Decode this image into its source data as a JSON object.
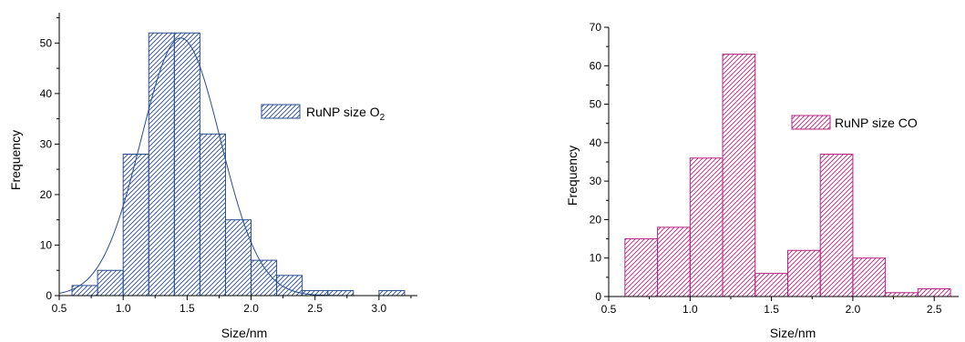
{
  "chart_data": [
    {
      "type": "bar",
      "xlabel": "Size/nm",
      "ylabel": "Frequency",
      "xlim": [
        0.5,
        3.3
      ],
      "ylim": [
        0,
        56
      ],
      "xticks": [
        "0.5",
        "1.0",
        "1.5",
        "2.0",
        "2.5",
        "3.0"
      ],
      "xtick_values": [
        0.5,
        1.0,
        1.5,
        2.0,
        2.5,
        3.0
      ],
      "yticks": [
        "0",
        "10",
        "20",
        "30",
        "40",
        "50"
      ],
      "ytick_values": [
        0,
        10,
        20,
        30,
        40,
        50
      ],
      "bin_width": 0.2,
      "bin_starts": [
        0.6,
        0.8,
        1.0,
        1.2,
        1.4,
        1.6,
        1.8,
        2.0,
        2.2,
        2.4,
        2.6,
        2.8,
        3.0
      ],
      "values": [
        2,
        5,
        28,
        52,
        52,
        32,
        15,
        7,
        4,
        1,
        1,
        0,
        1
      ],
      "legend": {
        "label": "RuNP size O",
        "subscript": "2",
        "placement": "top-right"
      },
      "color": "#2a4d8f",
      "fit_curve": {
        "type": "gaussian",
        "center": 1.45,
        "peak": 51,
        "sigma": 0.31
      },
      "grid": false
    },
    {
      "type": "bar",
      "xlabel": "Size/nm",
      "ylabel": "Frequency",
      "xlim": [
        0.5,
        2.65
      ],
      "ylim": [
        0,
        70
      ],
      "xticks": [
        "0.5",
        "1.0",
        "1.5",
        "2.0",
        "2.5"
      ],
      "xtick_values": [
        0.5,
        1.0,
        1.5,
        2.0,
        2.5
      ],
      "yticks": [
        "0",
        "10",
        "20",
        "30",
        "40",
        "50",
        "60",
        "70"
      ],
      "ytick_values": [
        0,
        10,
        20,
        30,
        40,
        50,
        60,
        70
      ],
      "bin_width": 0.2,
      "bin_starts": [
        0.6,
        0.8,
        1.0,
        1.2,
        1.4,
        1.6,
        1.8,
        2.0,
        2.2,
        2.4
      ],
      "values": [
        15,
        18,
        36,
        63,
        6,
        12,
        37,
        10,
        1,
        2
      ],
      "legend": {
        "label": "RuNP size CO",
        "placement": "top-right"
      },
      "color": "#b4237f",
      "grid": false
    }
  ]
}
